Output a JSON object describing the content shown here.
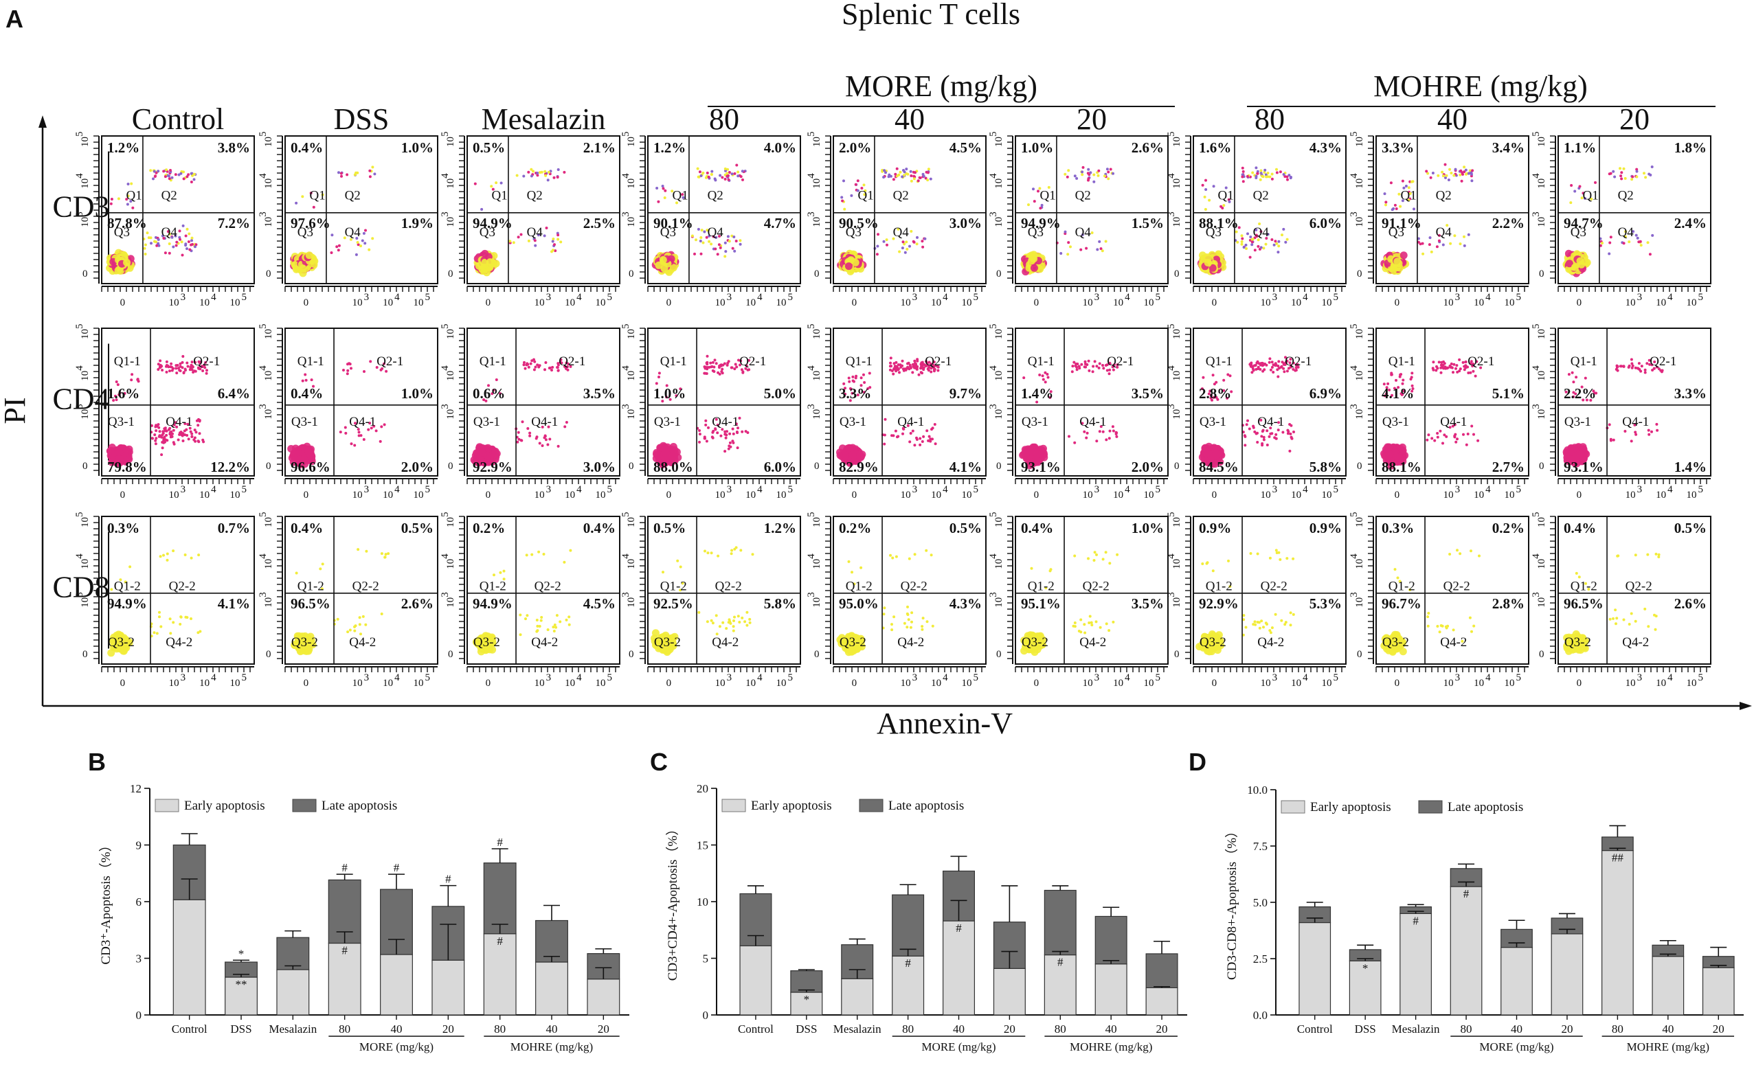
{
  "figure": {
    "panel_a": {
      "letter": "A",
      "title": "Splenic T cells",
      "xlabel": "Annexin-V",
      "ylabel": "PI",
      "group_more": "MORE (mg/kg)",
      "group_mohre": "MOHRE (mg/kg)",
      "columns": [
        "Control",
        "DSS",
        "Mesalazin",
        "80",
        "40",
        "20",
        "80",
        "40",
        "20"
      ],
      "rows": [
        "CD3",
        "CD4",
        "CD8"
      ],
      "axis_ticks": {
        "x": [
          "0",
          "10",
          "3",
          "10",
          "4",
          "10",
          "5"
        ],
        "y": [
          "0",
          "10",
          "3",
          "10",
          "4",
          "10",
          "5"
        ]
      },
      "quadrant_labels": [
        [
          "Q1",
          "Q2",
          "Q3",
          "Q4"
        ],
        [
          "Q1-1",
          "Q2-1",
          "Q3-1",
          "Q4-1"
        ],
        [
          "Q1-2",
          "Q2-2",
          "Q3-2",
          "Q4-2"
        ]
      ],
      "percentages": [
        [
          [
            "1.2%",
            "3.8%",
            "87.8%",
            "7.2%"
          ],
          [
            "0.4%",
            "1.0%",
            "97.6%",
            "1.9%"
          ],
          [
            "0.5%",
            "2.1%",
            "94.9%",
            "2.5%"
          ],
          [
            "1.2%",
            "4.0%",
            "90.1%",
            "4.7%"
          ],
          [
            "2.0%",
            "4.5%",
            "90.5%",
            "3.0%"
          ],
          [
            "1.0%",
            "2.6%",
            "94.9%",
            "1.5%"
          ],
          [
            "1.6%",
            "4.3%",
            "88.1%",
            "6.0%"
          ],
          [
            "3.3%",
            "3.4%",
            "91.1%",
            "2.2%"
          ],
          [
            "1.1%",
            "1.8%",
            "94.7%",
            "2.4%"
          ]
        ],
        [
          [
            "1.6%",
            "6.4%",
            "79.8%",
            "12.2%"
          ],
          [
            "0.4%",
            "1.0%",
            "96.6%",
            "2.0%"
          ],
          [
            "0.6%",
            "3.5%",
            "92.9%",
            "3.0%"
          ],
          [
            "1.0%",
            "5.0%",
            "88.0%",
            "6.0%"
          ],
          [
            "3.3%",
            "9.7%",
            "82.9%",
            "4.1%"
          ],
          [
            "1.4%",
            "3.5%",
            "93.1%",
            "2.0%"
          ],
          [
            "2.8%",
            "6.9%",
            "84.5%",
            "5.8%"
          ],
          [
            "4.1%",
            "5.1%",
            "88.1%",
            "2.7%"
          ],
          [
            "2.2%",
            "3.3%",
            "93.1%",
            "1.4%"
          ]
        ],
        [
          [
            "0.3%",
            "0.7%",
            "94.9%",
            "4.1%"
          ],
          [
            "0.4%",
            "0.5%",
            "96.5%",
            "2.6%"
          ],
          [
            "0.2%",
            "0.4%",
            "94.9%",
            "4.5%"
          ],
          [
            "0.5%",
            "1.2%",
            "92.5%",
            "5.8%"
          ],
          [
            "0.2%",
            "0.5%",
            "95.0%",
            "4.3%"
          ],
          [
            "0.4%",
            "1.0%",
            "95.1%",
            "3.5%"
          ],
          [
            "0.9%",
            "0.9%",
            "92.9%",
            "5.3%"
          ],
          [
            "0.3%",
            "0.2%",
            "96.7%",
            "2.8%"
          ],
          [
            "0.4%",
            "0.5%",
            "96.5%",
            "2.6%"
          ]
        ]
      ],
      "colors": {
        "cd3_a": "#e0287e",
        "cd3_b": "#f2ec3a",
        "cd3_c": "#8866cc",
        "cd4": "#e0287e",
        "cd8": "#f2ec3a",
        "axis": "#111111"
      }
    }
  },
  "chart_data": [
    {
      "letter": "B",
      "type": "bar",
      "stacked": true,
      "ylabel": "CD3⁺-Apoptosis（%）",
      "ylim": [
        0,
        12
      ],
      "yticks": [
        "0",
        "3",
        "6",
        "9",
        "12"
      ],
      "categories": [
        "Control",
        "DSS",
        "Mesalazin",
        "80",
        "40",
        "20",
        "80",
        "40",
        "20"
      ],
      "groups": [
        {
          "label": "MORE (mg/kg)",
          "from": 3,
          "to": 5
        },
        {
          "label": "MOHRE (mg/kg)",
          "from": 6,
          "to": 8
        }
      ],
      "legend": [
        "Early apoptosis",
        "Late apoptosis"
      ],
      "series": [
        {
          "name": "Early apoptosis",
          "values": [
            6.1,
            2.0,
            2.4,
            3.8,
            3.2,
            2.9,
            4.3,
            2.8,
            1.9
          ],
          "errors": [
            1.1,
            0.15,
            0.2,
            0.6,
            0.8,
            1.9,
            0.5,
            0.3,
            0.6
          ],
          "color": "#d9d9d9"
        },
        {
          "name": "Late apoptosis",
          "values": [
            2.9,
            0.8,
            1.7,
            3.35,
            3.45,
            2.85,
            3.75,
            2.2,
            1.35
          ],
          "errors": [
            0.6,
            0.1,
            0.35,
            0.3,
            0.8,
            1.1,
            0.75,
            0.8,
            0.25
          ],
          "color": "#6e6e6e"
        }
      ],
      "marks_early": [
        "",
        "**",
        "",
        "#",
        "",
        "",
        "#",
        "",
        ""
      ],
      "marks_total": [
        "",
        "*",
        "",
        "#",
        "#",
        "#",
        "#",
        "",
        ""
      ]
    },
    {
      "letter": "C",
      "type": "bar",
      "stacked": true,
      "ylabel": "CD3+CD4+-Apoptosis（%）",
      "ylim": [
        0,
        20
      ],
      "yticks": [
        "0",
        "5",
        "10",
        "15",
        "20"
      ],
      "categories": [
        "Control",
        "DSS",
        "Mesalazin",
        "80",
        "40",
        "20",
        "80",
        "40",
        "20"
      ],
      "groups": [
        {
          "label": "MORE (mg/kg)",
          "from": 3,
          "to": 5
        },
        {
          "label": "MOHRE (mg/kg)",
          "from": 6,
          "to": 8
        }
      ],
      "legend": [
        "Early apoptosis",
        "Late apoptosis"
      ],
      "series": [
        {
          "name": "Early apoptosis",
          "values": [
            6.1,
            2.0,
            3.2,
            5.2,
            8.3,
            4.1,
            5.3,
            4.5,
            2.4
          ],
          "errors": [
            0.9,
            0.2,
            0.8,
            0.6,
            1.8,
            1.5,
            0.3,
            0.3,
            0.1
          ],
          "color": "#d9d9d9"
        },
        {
          "name": "Late apoptosis",
          "values": [
            4.6,
            1.9,
            3.0,
            5.4,
            4.4,
            4.1,
            5.7,
            4.2,
            3.0
          ],
          "errors": [
            0.7,
            0.1,
            0.5,
            0.9,
            1.3,
            3.2,
            0.4,
            0.8,
            1.1
          ],
          "color": "#6e6e6e"
        }
      ],
      "marks_early": [
        "",
        "*",
        "",
        "#",
        "#",
        "",
        "#",
        "",
        ""
      ],
      "marks_total": [
        "",
        "",
        "",
        "",
        "",
        "",
        "",
        "",
        ""
      ]
    },
    {
      "letter": "D",
      "type": "bar",
      "stacked": true,
      "ylabel": "CD3-CD8+-Apoptosis（%）",
      "ylim": [
        0,
        10
      ],
      "yticks": [
        "0.0",
        "2.5",
        "5.0",
        "7.5",
        "10.0"
      ],
      "categories": [
        "Control",
        "DSS",
        "Mesalazin",
        "80",
        "40",
        "20",
        "80",
        "40",
        "20"
      ],
      "groups": [
        {
          "label": "MORE (mg/kg)",
          "from": 3,
          "to": 5
        },
        {
          "label": "MOHRE (mg/kg)",
          "from": 6,
          "to": 8
        }
      ],
      "legend": [
        "Early apoptosis",
        "Late apoptosis"
      ],
      "series": [
        {
          "name": "Early apoptosis",
          "values": [
            4.1,
            2.4,
            4.5,
            5.7,
            3.0,
            3.6,
            7.3,
            2.6,
            2.1
          ],
          "errors": [
            0.2,
            0.1,
            0.1,
            0.2,
            0.2,
            0.2,
            0.1,
            0.1,
            0.1
          ],
          "color": "#d9d9d9"
        },
        {
          "name": "Late apoptosis",
          "values": [
            0.7,
            0.5,
            0.3,
            0.8,
            0.8,
            0.7,
            0.6,
            0.5,
            0.5
          ],
          "errors": [
            0.2,
            0.2,
            0.1,
            0.2,
            0.4,
            0.2,
            0.5,
            0.2,
            0.4
          ],
          "color": "#6e6e6e"
        }
      ],
      "marks_early": [
        "",
        "*",
        "#",
        "#",
        "",
        "",
        "##",
        "",
        ""
      ],
      "marks_total": [
        "",
        "",
        "",
        "",
        "",
        "",
        "",
        "",
        ""
      ]
    }
  ]
}
